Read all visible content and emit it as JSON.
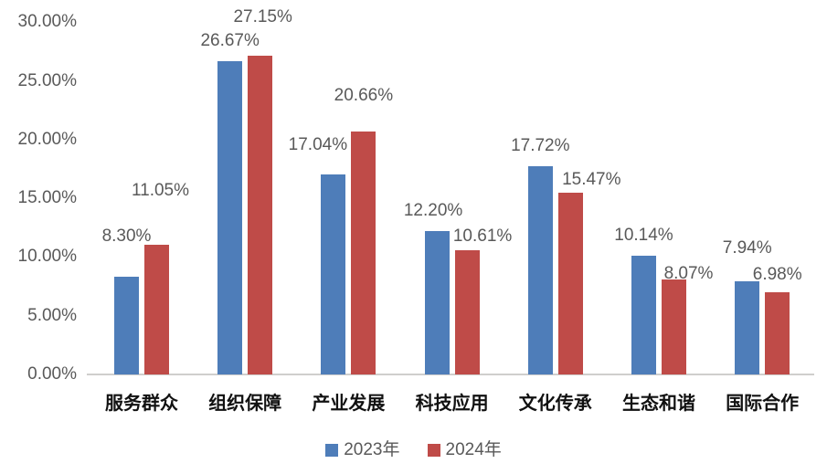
{
  "chart_data": {
    "type": "bar",
    "title": "",
    "categories": [
      "服务群众",
      "组织保障",
      "产业发展",
      "科技应用",
      "文化传承",
      "生态和谐",
      "国际合作"
    ],
    "series": [
      {
        "name": "2023年",
        "color": "#4E7DB9",
        "values": [
          8.3,
          26.67,
          17.04,
          12.2,
          17.72,
          10.14,
          7.94
        ]
      },
      {
        "name": "2024年",
        "color": "#BF4B48",
        "values": [
          11.05,
          27.15,
          20.66,
          10.61,
          15.47,
          8.07,
          6.98
        ]
      }
    ],
    "data_labels": [
      [
        "8.30%",
        "26.67%",
        "17.04%",
        "12.20%",
        "17.72%",
        "10.14%",
        "7.94%"
      ],
      [
        "11.05%",
        "27.15%",
        "20.66%",
        "10.61%",
        "15.47%",
        "8.07%",
        "6.98%"
      ]
    ],
    "y_axis": {
      "min": 0,
      "max": 30,
      "step": 5,
      "tick_labels": [
        "0.00%",
        "5.00%",
        "10.00%",
        "15.00%",
        "20.00%",
        "25.00%",
        "30.00%"
      ]
    },
    "legend": {
      "position": "bottom",
      "entries": [
        {
          "label": "2023年",
          "color": "#4E7DB9"
        },
        {
          "label": "2024年",
          "color": "#BF4B48"
        }
      ]
    },
    "grid": false,
    "axis_line_color": "#CFCECD",
    "background": "#FFFFFF"
  }
}
